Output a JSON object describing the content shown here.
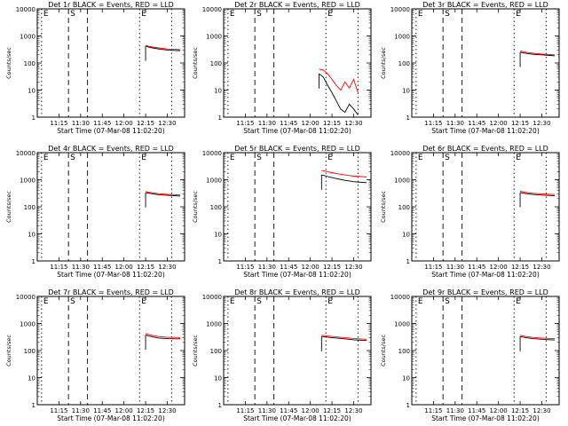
{
  "chart_data": [
    {
      "type": "line",
      "title": "Det 1r BLACK = Events, RED = LLD",
      "xlabel": "Start Time (07-Mar-08 11:02:20)",
      "ylabel": "Counts/sec",
      "x_ticks": [
        "11:15",
        "11:30",
        "11:45",
        "12:00",
        "12:15",
        "12:30"
      ],
      "y_ticks": [
        "1",
        "10",
        "100",
        "1000",
        "10000"
      ],
      "yscale": "log",
      "ylim": [
        1,
        10000
      ],
      "xlim_minutes": [
        11.0,
        12.7
      ],
      "markers": [
        {
          "label": "E",
          "x": 11.05
        },
        {
          "label": "S",
          "x": 11.36
        },
        {
          "label": "",
          "x": 11.58
        },
        {
          "label": "E",
          "x": 12.18
        },
        {
          "label": "",
          "x": 12.55
        }
      ],
      "series": [
        {
          "name": "Events",
          "color": "#000000",
          "x": [
            12.25,
            12.28,
            12.33,
            12.4,
            12.5,
            12.6,
            12.65
          ],
          "y": [
            420,
            390,
            360,
            330,
            300,
            290,
            285
          ]
        },
        {
          "name": "LLD",
          "color": "#ff0000",
          "x": [
            12.25,
            12.28,
            12.33,
            12.4,
            12.5,
            12.6,
            12.65
          ],
          "y": [
            450,
            420,
            390,
            360,
            330,
            320,
            310
          ]
        }
      ]
    },
    {
      "type": "line",
      "title": "Det 2r BLACK = Events, RED = LLD",
      "xlabel": "Start Time (07-Mar-08 11:02:20)",
      "ylabel": "Counts/sec",
      "x_ticks": [
        "11:15",
        "11:30",
        "11:45",
        "12:00",
        "12:15",
        "12:30"
      ],
      "y_ticks": [
        "1",
        "10",
        "100",
        "1000",
        "10000"
      ],
      "yscale": "log",
      "ylim": [
        1,
        10000
      ],
      "xlim_minutes": [
        11.0,
        12.7
      ],
      "markers": [
        {
          "label": "E",
          "x": 11.05
        },
        {
          "label": "S",
          "x": 11.36
        },
        {
          "label": "",
          "x": 11.58
        },
        {
          "label": "E",
          "x": 12.18
        },
        {
          "label": "",
          "x": 12.55
        }
      ],
      "series": [
        {
          "name": "Events",
          "color": "#000000",
          "x": [
            12.1,
            12.15,
            12.2,
            12.25,
            12.3,
            12.35,
            12.4,
            12.45,
            12.5,
            12.55
          ],
          "y": [
            40,
            30,
            15,
            8,
            4,
            2,
            1.5,
            3,
            2,
            1.2
          ]
        },
        {
          "name": "LLD",
          "color": "#ff0000",
          "x": [
            12.1,
            12.15,
            12.2,
            12.25,
            12.3,
            12.35,
            12.4,
            12.45,
            12.5,
            12.55
          ],
          "y": [
            60,
            55,
            40,
            25,
            15,
            10,
            20,
            12,
            25,
            8
          ]
        }
      ]
    },
    {
      "type": "line",
      "title": "Det 3r BLACK = Events, RED = LLD",
      "xlabel": "Start Time (07-Mar-08 11:02:20)",
      "ylabel": "Counts/sec",
      "x_ticks": [
        "11:15",
        "11:30",
        "11:45",
        "12:00",
        "12:15",
        "12:30"
      ],
      "y_ticks": [
        "1",
        "10",
        "100",
        "1000",
        "10000"
      ],
      "yscale": "log",
      "ylim": [
        1,
        10000
      ],
      "xlim_minutes": [
        11.0,
        12.7
      ],
      "markers": [
        {
          "label": "E",
          "x": 11.05
        },
        {
          "label": "S",
          "x": 11.36
        },
        {
          "label": "",
          "x": 11.58
        },
        {
          "label": "E",
          "x": 12.18
        },
        {
          "label": "",
          "x": 12.55
        }
      ],
      "series": [
        {
          "name": "Events",
          "color": "#000000",
          "x": [
            12.25,
            12.28,
            12.33,
            12.4,
            12.5,
            12.6,
            12.65
          ],
          "y": [
            250,
            240,
            225,
            210,
            200,
            190,
            185
          ]
        },
        {
          "name": "LLD",
          "color": "#ff0000",
          "x": [
            12.25,
            12.28,
            12.33,
            12.4,
            12.5,
            12.6,
            12.65
          ],
          "y": [
            280,
            265,
            245,
            230,
            215,
            205,
            200
          ]
        }
      ]
    },
    {
      "type": "line",
      "title": "Det 4r BLACK = Events, RED = LLD",
      "xlabel": "Start Time (07-Mar-08 11:02:20)",
      "ylabel": "Counts/sec",
      "x_ticks": [
        "11:15",
        "11:30",
        "11:45",
        "12:00",
        "12:15",
        "12:30"
      ],
      "y_ticks": [
        "1",
        "10",
        "100",
        "1000",
        "10000"
      ],
      "yscale": "log",
      "ylim": [
        1,
        10000
      ],
      "xlim_minutes": [
        11.0,
        12.7
      ],
      "markers": [
        {
          "label": "E",
          "x": 11.05
        },
        {
          "label": "S",
          "x": 11.36
        },
        {
          "label": "",
          "x": 11.58
        },
        {
          "label": "E",
          "x": 12.18
        },
        {
          "label": "",
          "x": 12.55
        }
      ],
      "series": [
        {
          "name": "Events",
          "color": "#000000",
          "x": [
            12.25,
            12.28,
            12.33,
            12.4,
            12.5,
            12.6,
            12.65
          ],
          "y": [
            330,
            320,
            300,
            280,
            265,
            255,
            250
          ]
        },
        {
          "name": "LLD",
          "color": "#ff0000",
          "x": [
            12.25,
            12.28,
            12.33,
            12.4,
            12.5,
            12.6,
            12.65
          ],
          "y": [
            370,
            350,
            330,
            305,
            290,
            280,
            275
          ]
        }
      ]
    },
    {
      "type": "line",
      "title": "Det 5r BLACK = Events, RED = LLD",
      "xlabel": "Start Time (07-Mar-08 11:02:20)",
      "ylabel": "Counts/sec",
      "x_ticks": [
        "11:15",
        "11:30",
        "11:45",
        "12:00",
        "12:15",
        "12:30"
      ],
      "y_ticks": [
        "1",
        "10",
        "100",
        "1000",
        "10000"
      ],
      "yscale": "log",
      "ylim": [
        1,
        10000
      ],
      "xlim_minutes": [
        11.0,
        12.7
      ],
      "markers": [
        {
          "label": "E",
          "x": 11.05
        },
        {
          "label": "S",
          "x": 11.36
        },
        {
          "label": "",
          "x": 11.58
        },
        {
          "label": "E",
          "x": 12.18
        },
        {
          "label": "",
          "x": 12.55
        }
      ],
      "series": [
        {
          "name": "Events",
          "color": "#000000",
          "x": [
            12.13,
            12.17,
            12.22,
            12.3,
            12.4,
            12.5,
            12.6,
            12.65
          ],
          "y": [
            1500,
            1400,
            1250,
            1100,
            950,
            850,
            800,
            780
          ]
        },
        {
          "name": "LLD",
          "color": "#ff0000",
          "x": [
            12.13,
            12.17,
            12.22,
            12.3,
            12.4,
            12.5,
            12.6,
            12.65
          ],
          "y": [
            2200,
            2100,
            1900,
            1700,
            1500,
            1350,
            1300,
            1250
          ]
        }
      ]
    },
    {
      "type": "line",
      "title": "Det 6r BLACK = Events, RED = LLD",
      "xlabel": "Start Time (07-Mar-08 11:02:20)",
      "ylabel": "Counts/sec",
      "x_ticks": [
        "11:15",
        "11:30",
        "11:45",
        "12:00",
        "12:15",
        "12:30"
      ],
      "y_ticks": [
        "1",
        "10",
        "100",
        "1000",
        "10000"
      ],
      "yscale": "log",
      "ylim": [
        1,
        10000
      ],
      "xlim_minutes": [
        11.0,
        12.7
      ],
      "markers": [
        {
          "label": "E",
          "x": 11.05
        },
        {
          "label": "S",
          "x": 11.36
        },
        {
          "label": "",
          "x": 11.58
        },
        {
          "label": "E",
          "x": 12.18
        },
        {
          "label": "",
          "x": 12.55
        }
      ],
      "series": [
        {
          "name": "Events",
          "color": "#000000",
          "x": [
            12.25,
            12.28,
            12.33,
            12.4,
            12.5,
            12.6,
            12.65
          ],
          "y": [
            340,
            320,
            300,
            285,
            270,
            260,
            255
          ]
        },
        {
          "name": "LLD",
          "color": "#ff0000",
          "x": [
            12.25,
            12.28,
            12.33,
            12.4,
            12.5,
            12.6,
            12.65
          ],
          "y": [
            380,
            360,
            335,
            315,
            300,
            290,
            285
          ]
        }
      ]
    },
    {
      "type": "line",
      "title": "Det 7r BLACK = Events, RED = LLD",
      "xlabel": "Start Time (07-Mar-08 11:02:20)",
      "ylabel": "Counts/sec",
      "x_ticks": [
        "11:15",
        "11:30",
        "11:45",
        "12:00",
        "12:15",
        "12:30"
      ],
      "y_ticks": [
        "1",
        "10",
        "100",
        "1000",
        "10000"
      ],
      "yscale": "log",
      "ylim": [
        1,
        10000
      ],
      "xlim_minutes": [
        11.0,
        12.7
      ],
      "markers": [
        {
          "label": "E",
          "x": 11.05
        },
        {
          "label": "S",
          "x": 11.36
        },
        {
          "label": "",
          "x": 11.58
        },
        {
          "label": "E",
          "x": 12.18
        },
        {
          "label": "",
          "x": 12.55
        }
      ],
      "series": [
        {
          "name": "Events",
          "color": "#000000",
          "x": [
            12.25,
            12.28,
            12.33,
            12.4,
            12.5,
            12.6,
            12.65
          ],
          "y": [
            380,
            350,
            320,
            290,
            275,
            270,
            270
          ]
        },
        {
          "name": "LLD",
          "color": "#ff0000",
          "x": [
            12.25,
            12.28,
            12.33,
            12.4,
            12.5,
            12.6,
            12.65
          ],
          "y": [
            430,
            400,
            360,
            330,
            310,
            305,
            300
          ]
        }
      ]
    },
    {
      "type": "line",
      "title": "Det 8r BLACK = Events, RED = LLD",
      "xlabel": "Start Time (07-Mar-08 11:02:20)",
      "ylabel": "Counts/sec",
      "x_ticks": [
        "11:15",
        "11:30",
        "11:45",
        "12:00",
        "12:15",
        "12:30"
      ],
      "y_ticks": [
        "1",
        "10",
        "100",
        "1000",
        "10000"
      ],
      "yscale": "log",
      "ylim": [
        1,
        10000
      ],
      "xlim_minutes": [
        11.0,
        12.7
      ],
      "markers": [
        {
          "label": "E",
          "x": 11.05
        },
        {
          "label": "S",
          "x": 11.36
        },
        {
          "label": "",
          "x": 11.58
        },
        {
          "label": "E",
          "x": 12.18
        },
        {
          "label": "",
          "x": 12.55
        }
      ],
      "series": [
        {
          "name": "Events",
          "color": "#000000",
          "x": [
            12.13,
            12.17,
            12.22,
            12.3,
            12.4,
            12.5,
            12.6,
            12.65
          ],
          "y": [
            330,
            320,
            305,
            290,
            270,
            250,
            240,
            235
          ]
        },
        {
          "name": "LLD",
          "color": "#ff0000",
          "x": [
            12.13,
            12.17,
            12.22,
            12.3,
            12.4,
            12.5,
            12.6,
            12.65
          ],
          "y": [
            370,
            355,
            340,
            320,
            300,
            280,
            265,
            260
          ]
        }
      ]
    },
    {
      "type": "line",
      "title": "Det 9r BLACK = Events, RED = LLD",
      "xlabel": "Start Time (07-Mar-08 11:02:20)",
      "ylabel": "Counts/sec",
      "x_ticks": [
        "11:15",
        "11:30",
        "11:45",
        "12:00",
        "12:15",
        "12:30"
      ],
      "y_ticks": [
        "1",
        "10",
        "100",
        "1000",
        "10000"
      ],
      "yscale": "log",
      "ylim": [
        1,
        10000
      ],
      "xlim_minutes": [
        11.0,
        12.7
      ],
      "markers": [
        {
          "label": "E",
          "x": 11.05
        },
        {
          "label": "S",
          "x": 11.36
        },
        {
          "label": "",
          "x": 11.58
        },
        {
          "label": "E",
          "x": 12.18
        },
        {
          "label": "",
          "x": 12.55
        }
      ],
      "series": [
        {
          "name": "Events",
          "color": "#000000",
          "x": [
            12.25,
            12.28,
            12.33,
            12.4,
            12.5,
            12.6,
            12.65
          ],
          "y": [
            330,
            315,
            295,
            275,
            260,
            250,
            245
          ]
        },
        {
          "name": "LLD",
          "color": "#ff0000",
          "x": [
            12.25,
            12.28,
            12.33,
            12.4,
            12.5,
            12.6,
            12.65
          ],
          "y": [
            370,
            350,
            325,
            305,
            290,
            280,
            275
          ]
        }
      ]
    }
  ]
}
